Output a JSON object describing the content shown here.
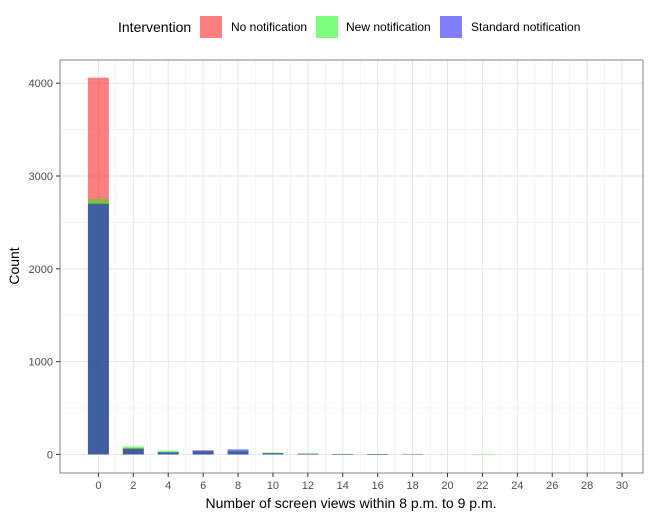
{
  "chart_data": {
    "type": "bar",
    "title": "",
    "xlabel": "Number of screen views within 8 p.m. to 9 p.m.",
    "ylabel": "Count",
    "x_ticks": [
      0,
      2,
      4,
      6,
      8,
      10,
      12,
      14,
      16,
      18,
      20,
      22,
      24,
      26,
      28,
      30
    ],
    "y_ticks": [
      0,
      1000,
      2000,
      3000,
      4000
    ],
    "xlim": [
      -2.2,
      31.2
    ],
    "ylim": [
      -200,
      4250
    ],
    "grid": true,
    "legend": {
      "position": "top",
      "title": "Intervention",
      "entries": [
        "No notification",
        "New notification",
        "Standard notification"
      ]
    },
    "series": [
      {
        "name": "No notification",
        "color": "#FF0000",
        "opacity": 0.5,
        "x": [
          0,
          2,
          4,
          6,
          8,
          10,
          12,
          14,
          16
        ],
        "values": [
          4060,
          70,
          15,
          35,
          30,
          10,
          5,
          3,
          2
        ]
      },
      {
        "name": "New notification",
        "color": "#00FF00",
        "opacity": 0.5,
        "x": [
          0,
          2,
          4,
          6,
          8,
          10,
          12,
          14,
          16,
          22
        ],
        "values": [
          2750,
          85,
          40,
          30,
          40,
          20,
          10,
          6,
          4,
          5
        ]
      },
      {
        "name": "Standard notification",
        "color": "#0000FF",
        "opacity": 0.5,
        "x": [
          0,
          2,
          4,
          6,
          8,
          10,
          12,
          14,
          16,
          18
        ],
        "values": [
          2700,
          60,
          25,
          45,
          55,
          15,
          8,
          4,
          3,
          6
        ]
      }
    ]
  }
}
